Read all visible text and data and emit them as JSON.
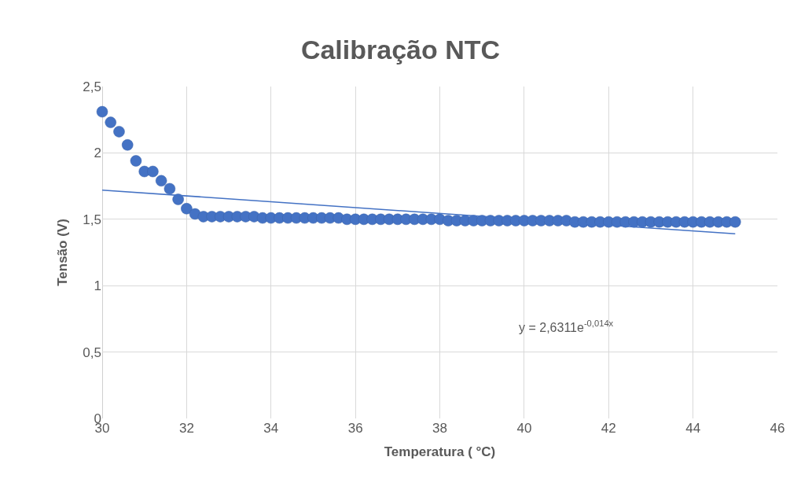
{
  "chart_data": {
    "type": "scatter",
    "title": "Calibração NTC",
    "xlabel": "Temperatura ( °C)",
    "ylabel": "Tensão (V)",
    "series": [
      {
        "color": "#4472c4",
        "marker": "circle",
        "x": [
          30,
          30.2,
          30.4,
          30.6,
          30.8,
          31,
          31.2,
          31.4,
          31.6,
          31.8,
          32,
          32.2,
          32.4,
          32.6,
          32.8,
          33,
          33.2,
          33.4,
          33.6,
          33.8,
          34,
          34.2,
          34.4,
          34.6,
          34.8,
          35,
          35.2,
          35.4,
          35.6,
          35.8,
          36,
          36.2,
          36.4,
          36.6,
          36.8,
          37,
          37.2,
          37.4,
          37.6,
          37.8,
          38,
          38.2,
          38.4,
          38.6,
          38.8,
          39,
          39.2,
          39.4,
          39.6,
          39.8,
          40,
          40.2,
          40.4,
          40.6,
          40.8,
          41,
          41.2,
          41.4,
          41.6,
          41.8,
          42,
          42.2,
          42.4,
          42.6,
          42.8,
          43,
          43.2,
          43.4,
          43.6,
          43.8,
          44,
          44.2,
          44.4,
          44.6,
          44.8,
          45
        ],
        "values": [
          2.31,
          2.23,
          2.16,
          2.06,
          1.94,
          1.86,
          1.86,
          1.79,
          1.73,
          1.65,
          1.58,
          1.54,
          1.52,
          1.52,
          1.52,
          1.52,
          1.52,
          1.52,
          1.52,
          1.51,
          1.51,
          1.51,
          1.51,
          1.51,
          1.51,
          1.51,
          1.51,
          1.51,
          1.51,
          1.5,
          1.5,
          1.5,
          1.5,
          1.5,
          1.5,
          1.5,
          1.5,
          1.5,
          1.5,
          1.5,
          1.5,
          1.49,
          1.49,
          1.49,
          1.49,
          1.49,
          1.49,
          1.49,
          1.49,
          1.49,
          1.49,
          1.49,
          1.49,
          1.49,
          1.49,
          1.49,
          1.48,
          1.48,
          1.48,
          1.48,
          1.48,
          1.48,
          1.48,
          1.48,
          1.48,
          1.48,
          1.48,
          1.48,
          1.48,
          1.48,
          1.48,
          1.48,
          1.48,
          1.48,
          1.48,
          1.48
        ]
      },
      {
        "type": "line",
        "color": "#4472c4",
        "marker": "none",
        "line_style": "solid",
        "x": [
          30,
          35,
          40,
          45
        ],
        "values": [
          1.72,
          1.61,
          1.5,
          1.39
        ]
      }
    ],
    "xlim": [
      30,
      46
    ],
    "xticks": [
      30,
      32,
      34,
      36,
      38,
      40,
      42,
      44,
      46
    ],
    "ylim": [
      0,
      2.5
    ],
    "yticks": [
      0,
      {
        "value": 0.5,
        "label": "0,5"
      },
      1,
      {
        "value": 1.5,
        "label": "1,5"
      },
      2,
      {
        "value": 2.5,
        "label": "2,5"
      }
    ],
    "grid": true,
    "annotations": [
      "y = 2,6311e$^{-0,014x}$"
    ]
  }
}
